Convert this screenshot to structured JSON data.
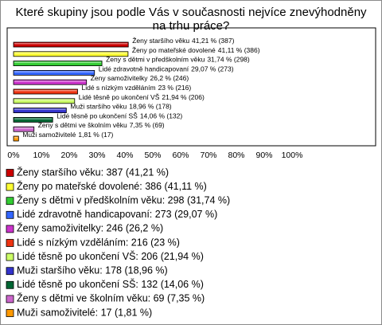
{
  "chart_data": {
    "type": "bar",
    "orientation": "horizontal",
    "title": "Které skupiny jsou podle Vás v současnosti nejvíce znevýhodněny na trhu práce?",
    "categories": [
      "Ženy staršího věku",
      "Ženy po mateřské dovolené",
      "Ženy s dětmi v předškolním věku",
      "Lidé zdravotně handicapovaní",
      "Ženy samoživitelky",
      "Lidé s nízkým vzděláním",
      "Lidé těsně po ukončení VŠ",
      "Muži staršího věku",
      "Lidé těsně po ukončení SŠ",
      "Ženy s dětmi ve školním věku",
      "Muži samoživitelé"
    ],
    "values": [
      41.21,
      41.11,
      31.74,
      29.07,
      26.2,
      23,
      21.94,
      18.96,
      14.06,
      7.35,
      1.81
    ],
    "value_labels": [
      "41,21 % (387)",
      "41,11 % (386)",
      "31,74 % (298)",
      "29,07 % (273)",
      "26,2 % (246)",
      "23 % (216)",
      "21,94 % (206)",
      "18,96 % (178)",
      "14,06 % (132)",
      "7,35 % (69)",
      "1,81 % (17)"
    ],
    "legend_labels": [
      "Ženy staršího věku: 387 (41,21 %)",
      "Ženy po mateřské dovolené: 386 (41,11 %)",
      "Ženy s dětmi v předškolním věku: 298 (31,74 %)",
      "Lidé zdravotně handicapovaní: 273 (29,07 %)",
      "Ženy samoživitelky: 246 (26,2 %)",
      "Lidé s nízkým vzděláním: 216 (23 %)",
      "Lidé těsně po ukončení VŠ: 206 (21,94 %)",
      "Muži staršího věku: 178 (18,96 %)",
      "Lidé těsně po ukončení SŠ: 132 (14,06 %)",
      "Ženy s dětmi ve školním věku: 69 (7,35 %)",
      "Muži samoživitelé: 17 (1,81 %)"
    ],
    "colors": [
      "#cc0000",
      "#ffff33",
      "#33cc33",
      "#3366ff",
      "#cc33cc",
      "#ee3311",
      "#ccff66",
      "#3333cc",
      "#006633",
      "#cc66cc",
      "#ff9900"
    ],
    "xlim": [
      0,
      100
    ],
    "xticks": [
      {
        "value": 0,
        "label": "0%"
      },
      {
        "value": 10,
        "label": "10%"
      },
      {
        "value": 20,
        "label": "20%"
      },
      {
        "value": 30,
        "label": "30%"
      },
      {
        "value": 40,
        "label": "40%"
      },
      {
        "value": 50,
        "label": "50%"
      },
      {
        "value": 60,
        "label": "60%"
      },
      {
        "value": 70,
        "label": "70%"
      },
      {
        "value": 80,
        "label": "80%"
      },
      {
        "value": 90,
        "label": "90%"
      },
      {
        "value": 100,
        "label": "100%"
      }
    ],
    "grid": false
  }
}
